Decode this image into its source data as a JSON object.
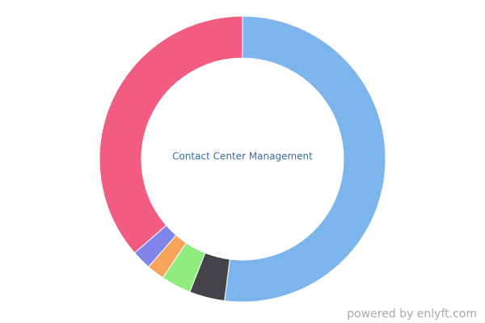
{
  "chart_data": {
    "type": "donut",
    "title": "Contact Center Management",
    "categories": [
      null,
      null,
      null,
      null,
      null,
      null
    ],
    "values": [
      52,
      4,
      3.4,
      2,
      2.2,
      36.4
    ],
    "colors": [
      "#7cb5ec",
      "#434348",
      "#90ed7d",
      "#f7a35c",
      "#8085e9",
      "#f15c80"
    ]
  },
  "footer": "powered by enlyft.com"
}
